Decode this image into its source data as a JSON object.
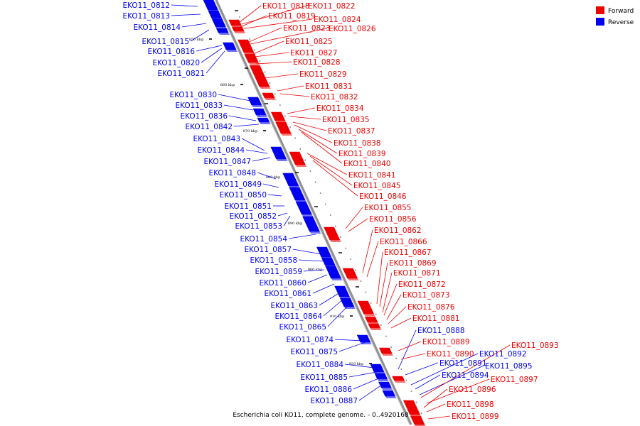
{
  "caption": "Escherichia coli KO11, complete genome. - 0..4920168",
  "colors": {
    "forward": "#ee0000",
    "reverse": "#0000ee",
    "backbone": "#909090"
  },
  "legend": [
    {
      "label": "Forward",
      "color": "#ee0000"
    },
    {
      "label": "Reverse",
      "color": "#0000ee"
    }
  ],
  "scale": {
    "start_kbp": 850,
    "end_kbp": 927,
    "ticks": [
      "850 kbp",
      "860 kbp",
      "870 kbp",
      "880 kbp",
      "890 kbp",
      "900 kbp",
      "910 kbp",
      "920 kbp"
    ]
  },
  "reverse_genes": [
    "EKO11_0812",
    "EKO11_0813",
    "EKO11_0814",
    "EKO11_0815",
    "EKO11_0816",
    "EKO11_0820",
    "EKO11_0821",
    "EKO11_0830",
    "EKO11_0833",
    "EKO11_0836",
    "EKO11_0842",
    "EKO11_0843",
    "EKO11_0844",
    "EKO11_0847",
    "EKO11_0848",
    "EKO11_0849",
    "EKO11_0850",
    "EKO11_0851",
    "EKO11_0852",
    "EKO11_0853",
    "EKO11_0854",
    "EKO11_0857",
    "EKO11_0858",
    "EKO11_0859",
    "EKO11_0860",
    "EKO11_0861",
    "EKO11_0863",
    "EKO11_0864",
    "EKO11_0865",
    "EKO11_0874",
    "EKO11_0875",
    "EKO11_0884",
    "EKO11_0885",
    "EKO11_0886",
    "EKO11_0887",
    "EKO11_0888",
    "EKO11_0891",
    "EKO11_0892",
    "EKO11_0894",
    "EKO11_0895"
  ],
  "forward_genes": [
    "EKO11_0818",
    "EKO11_0822",
    "EKO11_0819",
    "EKO11_0824",
    "EKO11_0823",
    "EKO11_0826",
    "EKO11_0825",
    "EKO11_0827",
    "EKO11_0828",
    "EKO11_0829",
    "EKO11_0831",
    "EKO11_0832",
    "EKO11_0834",
    "EKO11_0835",
    "EKO11_0837",
    "EKO11_0838",
    "EKO11_0839",
    "EKO11_0840",
    "EKO11_0841",
    "EKO11_0845",
    "EKO11_0846",
    "EKO11_0855",
    "EKO11_0856",
    "EKO11_0862",
    "EKO11_0866",
    "EKO11_0867",
    "EKO11_0869",
    "EKO11_0871",
    "EKO11_0872",
    "EKO11_0873",
    "EKO11_0876",
    "EKO11_0881",
    "EKO11_0889",
    "EKO11_0890",
    "EKO11_0893",
    "EKO11_0896",
    "EKO11_0897",
    "EKO11_0898",
    "EKO11_0899"
  ]
}
